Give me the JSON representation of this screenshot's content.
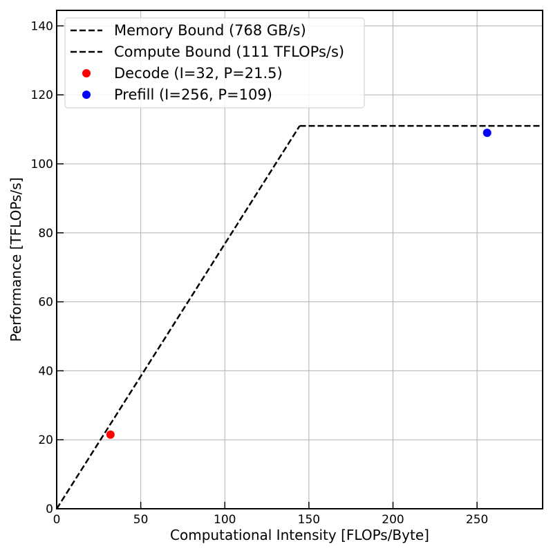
{
  "chart_data": {
    "type": "line",
    "title": "",
    "xlabel": "Computational Intensity  [FLOPs/Byte]",
    "ylabel": "Performance [TFLOPs/s]",
    "xlim": [
      0,
      289
    ],
    "ylim": [
      0,
      144.5
    ],
    "xticks": [
      "0",
      "50",
      "100",
      "150",
      "200",
      "250"
    ],
    "yticks": [
      "0",
      "20",
      "40",
      "60",
      "80",
      "100",
      "120",
      "140"
    ],
    "grid": true,
    "legend_position": "top-left",
    "series": [
      {
        "name": "Memory Bound (768 GB/s)",
        "style": "dashed",
        "color": "#000000",
        "points": [
          [
            0,
            0
          ],
          [
            144.5,
            111
          ]
        ]
      },
      {
        "name": "Compute Bound (111 TFLOPs/s)",
        "style": "dashed",
        "color": "#000000",
        "points": [
          [
            144.5,
            111
          ],
          [
            289,
            111
          ]
        ]
      },
      {
        "name": "Decode (I=32, P=21.5)",
        "style": "marker",
        "color": "#ff0000",
        "points": [
          [
            32,
            21.5
          ]
        ]
      },
      {
        "name": "Prefill (I=256, P=109)",
        "style": "marker",
        "color": "#0000ff",
        "points": [
          [
            256,
            109
          ]
        ]
      }
    ]
  }
}
